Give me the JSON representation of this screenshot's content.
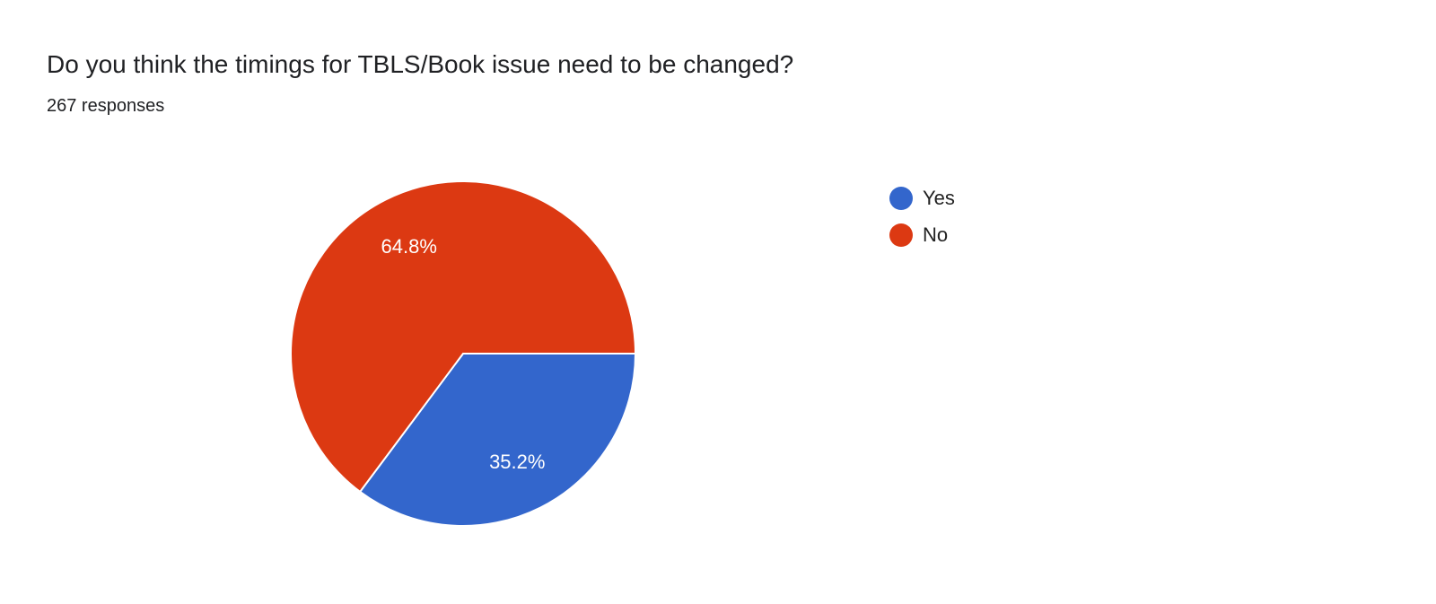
{
  "header": {
    "title": "Do you think the timings for TBLS/Book issue need to be changed?",
    "responses": "267 responses"
  },
  "chart_data": {
    "type": "pie",
    "categories": [
      "Yes",
      "No"
    ],
    "values": [
      35.2,
      64.8
    ],
    "labels": [
      "35.2%",
      "64.8%"
    ],
    "colors": [
      "#3366cc",
      "#dc3912"
    ],
    "legend_position": "right"
  }
}
